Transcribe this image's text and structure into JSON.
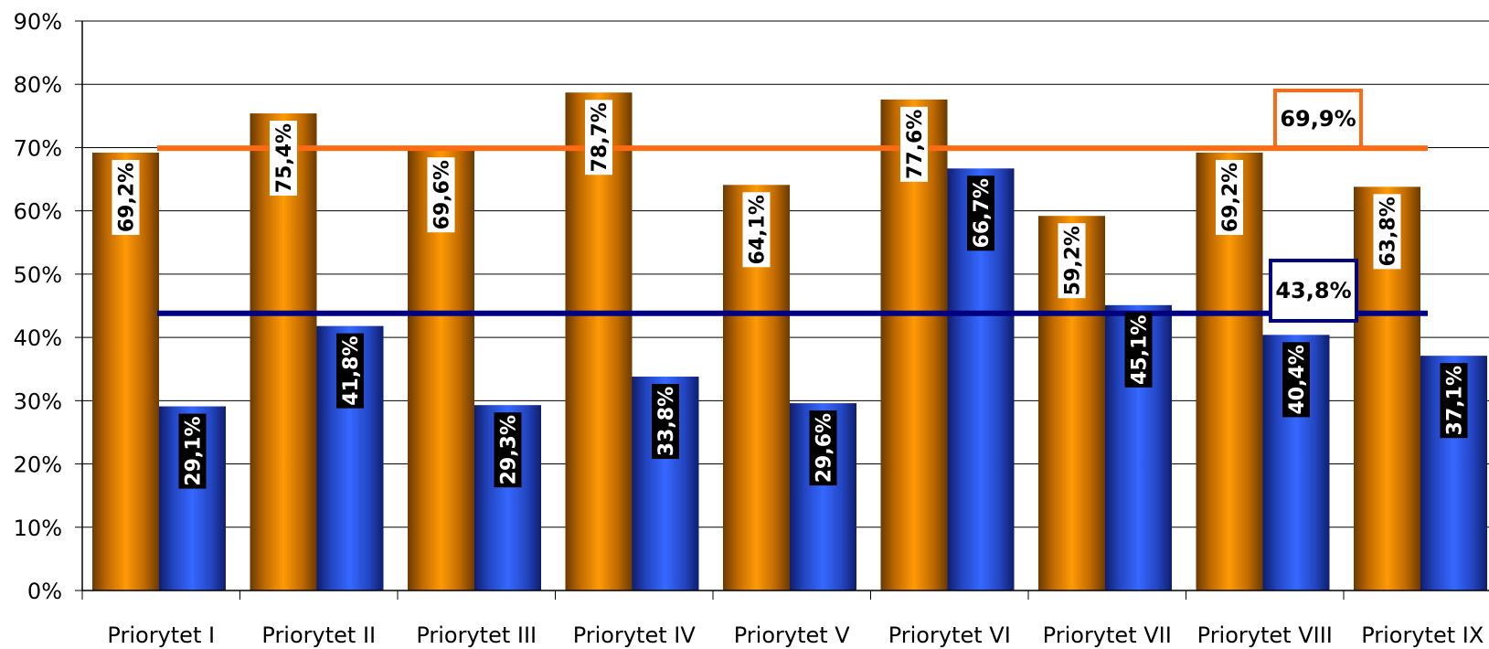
{
  "chart_data": {
    "type": "bar",
    "categories": [
      "Priorytet I",
      "Priorytet II",
      "Priorytet III",
      "Priorytet IV",
      "Priorytet V",
      "Priorytet VI",
      "Priorytet VII",
      "Priorytet VIII",
      "Priorytet IX"
    ],
    "series": [
      {
        "color": "#FF9900",
        "values": [
          69.2,
          75.4,
          69.6,
          78.7,
          64.1,
          77.6,
          59.2,
          69.2,
          63.8
        ],
        "labels": [
          "69,2%",
          "75,4%",
          "69,6%",
          "78,7%",
          "64,1%",
          "77,6%",
          "59,2%",
          "69,2%",
          "63,8%"
        ]
      },
      {
        "color": "#3366FF",
        "values": [
          29.1,
          41.8,
          29.3,
          33.8,
          29.6,
          66.7,
          45.1,
          40.4,
          37.1
        ],
        "labels": [
          "29,1%",
          "41,8%",
          "29,3%",
          "33,8%",
          "29,6%",
          "66,7%",
          "45,1%",
          "40,4%",
          "37,1%"
        ]
      }
    ],
    "reference_lines": [
      {
        "value": 69.9,
        "label": "69,9%",
        "color": "#FF6A13"
      },
      {
        "value": 43.8,
        "label": "43,8%",
        "color": "#000080"
      }
    ],
    "ylim": [
      0,
      90
    ],
    "yticks": [
      0,
      10,
      20,
      30,
      40,
      50,
      60,
      70,
      80,
      90
    ],
    "ytick_labels": [
      "0%",
      "10%",
      "20%",
      "30%",
      "40%",
      "50%",
      "60%",
      "70%",
      "80%",
      "90%"
    ],
    "grid": true,
    "legend": "none",
    "title": "",
    "xlabel": "",
    "ylabel": ""
  }
}
